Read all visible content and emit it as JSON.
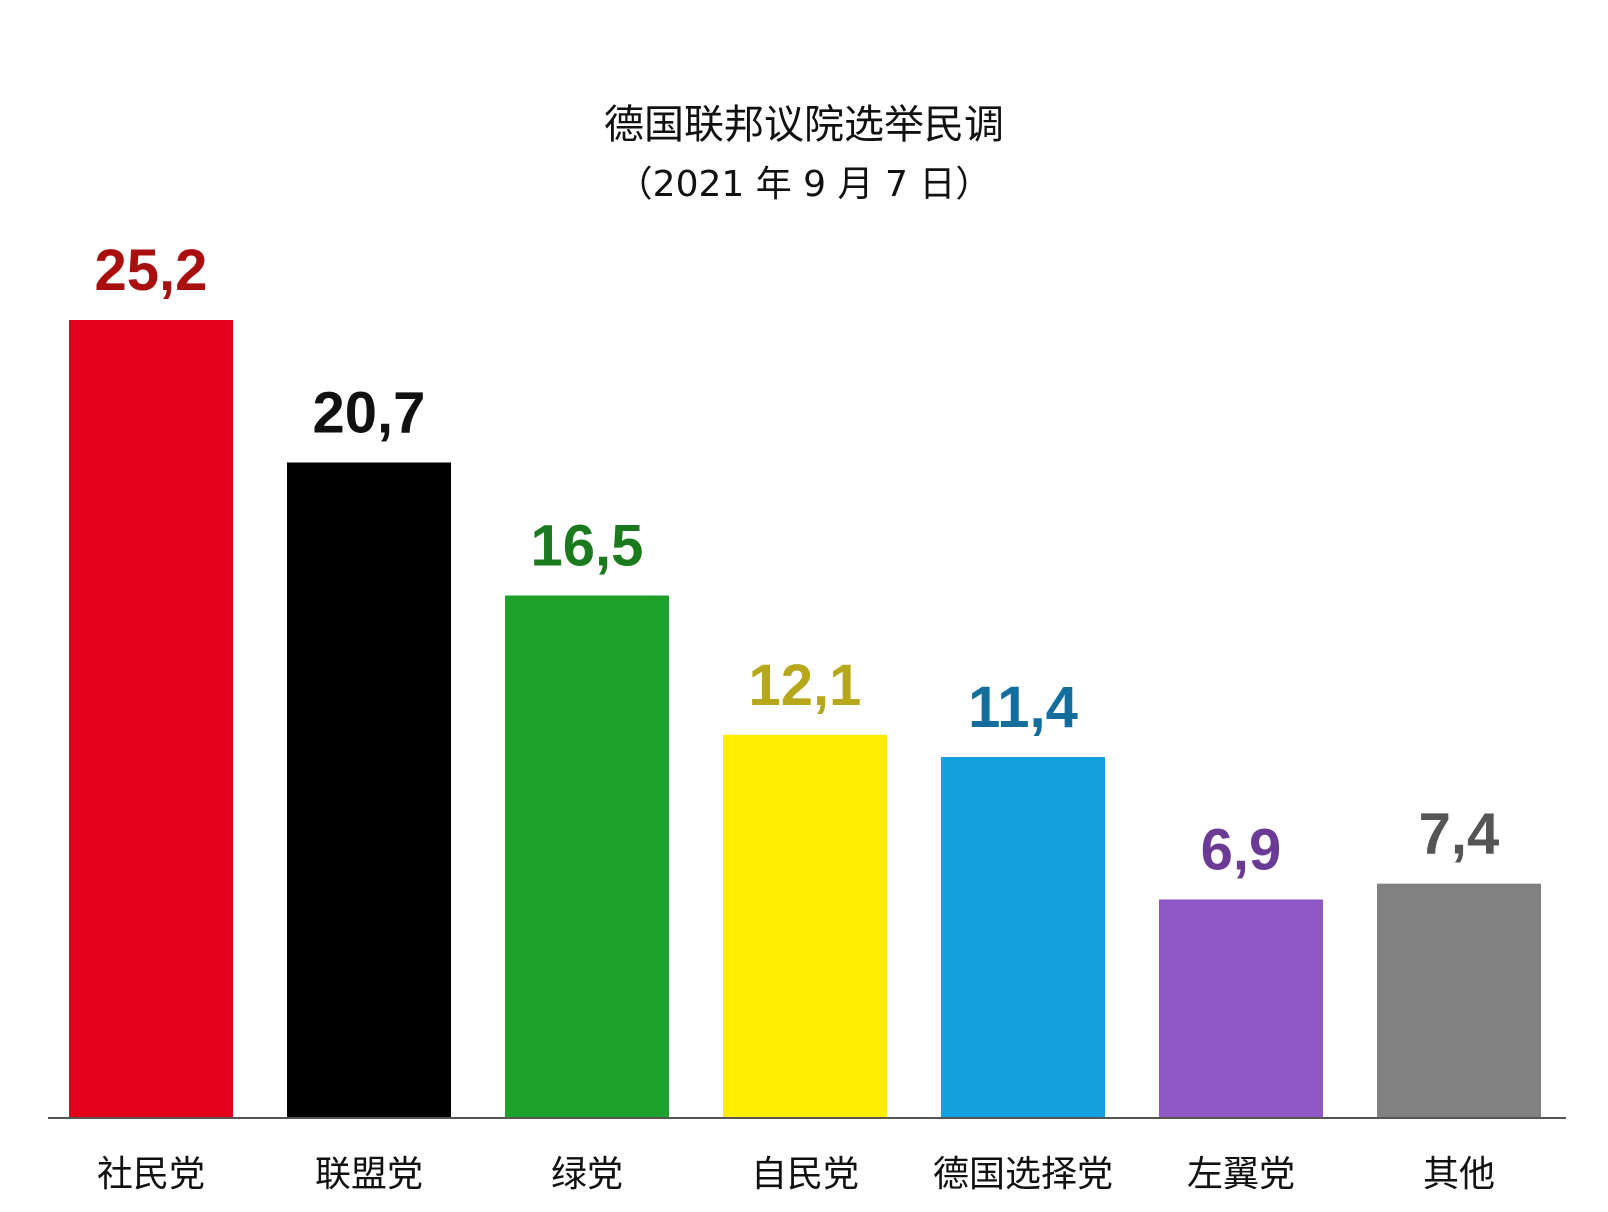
{
  "chart_data": {
    "type": "bar",
    "title": "德国联邦议院选举民调",
    "subtitle": "（2021 年 9 月 7 日）",
    "categories": [
      "社民党",
      "联盟党",
      "绿党",
      "自民党",
      "德国选择党",
      "左翼党",
      "其他"
    ],
    "values": [
      25.2,
      20.7,
      16.5,
      12.1,
      11.4,
      6.9,
      7.4
    ],
    "value_labels": [
      "25,2",
      "20,7",
      "16,5",
      "12,1",
      "11,4",
      "6,9",
      "7,4"
    ],
    "bar_colors": [
      "#e3001b",
      "#000000",
      "#1ea12a",
      "#ffed00",
      "#12a0df",
      "#8f57c5",
      "#818181"
    ],
    "label_colors": [
      "#a90f0f",
      "#111111",
      "#1b7a1e",
      "#b6a81a",
      "#136e9e",
      "#6a3a94",
      "#555555"
    ],
    "xlabel": "",
    "ylabel": "",
    "ylim": [
      0,
      25.2
    ],
    "grid": false,
    "legend": "none"
  }
}
